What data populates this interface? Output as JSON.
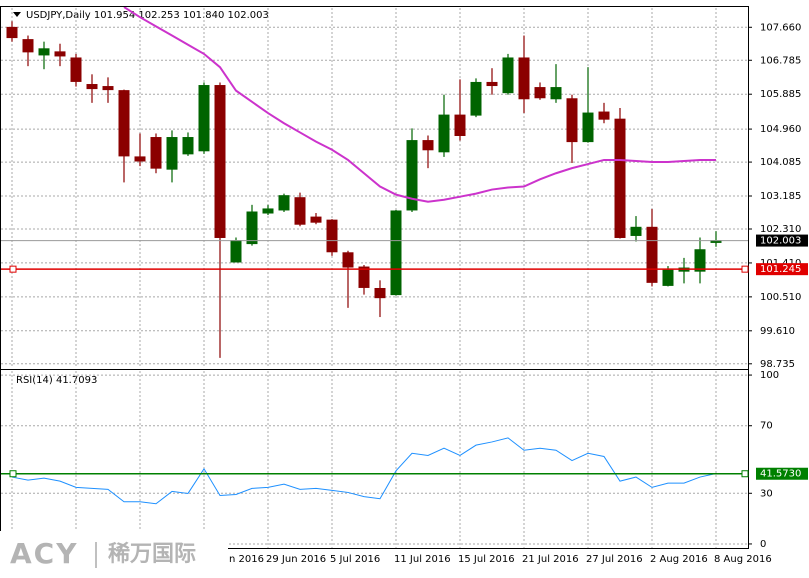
{
  "chart_data": [
    {
      "type": "candlestick",
      "title": "USDJPY,Daily 101.954 102.253 101.840 102.003",
      "categories": [
        null,
        null,
        null,
        null,
        null,
        null,
        null,
        null,
        null,
        null,
        null,
        null,
        "n 2016",
        null,
        null,
        null,
        "29 Jun 2016",
        null,
        null,
        null,
        "5 Jul 2016",
        null,
        null,
        null,
        "11 Jul 2016",
        null,
        null,
        null,
        "15 Jul 2016",
        null,
        null,
        null,
        "21 Jul 2016",
        null,
        null,
        null,
        "27 Jul 2016",
        null,
        null,
        null,
        "2 Aug 2016",
        null,
        null,
        null,
        "8 Aug 2016"
      ],
      "open": [
        107.657,
        107.333,
        106.927,
        107.008,
        106.846,
        106.142,
        106.088,
        105.98,
        104.222,
        104.736,
        103.897,
        104.303,
        104.384,
        106.115,
        101.436,
        101.923,
        102.734,
        102.815,
        103.14,
        102.626,
        102.545,
        101.679,
        101.301,
        100.732,
        100.57,
        102.815,
        104.655,
        104.357,
        105.331,
        105.331,
        106.197,
        105.926,
        106.846,
        106.061,
        105.764,
        105.764,
        104.628,
        105.412,
        105.223,
        102.139,
        102.355,
        100.814,
        101.192,
        101.192,
        101.954
      ],
      "high": [
        107.82,
        107.441,
        107.279,
        107.224,
        106.954,
        106.413,
        106.332,
        106.007,
        104.844,
        104.844,
        104.925,
        104.871,
        106.197,
        106.197,
        102.085,
        102.951,
        102.951,
        103.248,
        103.275,
        102.734,
        102.572,
        101.733,
        101.355,
        100.949,
        102.815,
        104.979,
        104.79,
        105.872,
        106.278,
        106.305,
        106.575,
        106.954,
        107.441,
        106.197,
        106.683,
        105.872,
        106.602,
        105.656,
        105.52,
        102.653,
        102.842,
        101.328,
        101.544,
        102.085,
        102.253
      ],
      "low": [
        107.279,
        106.629,
        106.548,
        106.629,
        106.088,
        105.656,
        105.656,
        103.546,
        103.978,
        103.789,
        103.546,
        104.249,
        104.303,
        98.893,
        101.436,
        101.869,
        102.68,
        102.761,
        102.383,
        102.437,
        101.598,
        100.219,
        100.57,
        99.975,
        100.543,
        102.761,
        103.924,
        104.222,
        104.655,
        105.277,
        105.872,
        105.872,
        105.385,
        105.737,
        105.656,
        104.06,
        104.6,
        105.115,
        102.058,
        101.977,
        100.787,
        100.787,
        100.868,
        100.868,
        101.84
      ],
      "close": [
        107.387,
        107.008,
        107.089,
        106.9,
        106.224,
        106.034,
        106.007,
        104.249,
        104.114,
        103.924,
        104.736,
        104.736,
        106.115,
        102.085,
        102.004,
        102.761,
        102.842,
        103.194,
        102.437,
        102.491,
        101.706,
        101.301,
        100.76,
        100.489,
        102.788,
        104.655,
        104.411,
        105.331,
        104.79,
        106.197,
        106.115,
        106.846,
        105.764,
        105.791,
        106.061,
        104.628,
        105.385,
        105.223,
        102.085,
        102.355,
        100.895,
        101.219,
        101.274,
        101.76,
        102.003
      ],
      "up_color": "#006400",
      "down_color": "#8b0000",
      "ma": {
        "color": "#cc33cc",
        "values": [
          null,
          null,
          null,
          null,
          null,
          null,
          null,
          108.198,
          107.928,
          107.684,
          107.441,
          107.197,
          106.954,
          106.602,
          105.98,
          105.683,
          105.385,
          105.115,
          104.871,
          104.628,
          104.411,
          104.141,
          103.789,
          103.437,
          103.221,
          103.113,
          103.032,
          103.086,
          103.167,
          103.248,
          103.356,
          103.41,
          103.437,
          103.627,
          103.789,
          103.924,
          104.032,
          104.141,
          104.141,
          104.114,
          104.087,
          104.087,
          104.114,
          104.141,
          104.141
        ]
      },
      "lines": [
        {
          "value": 102.003,
          "label": "102.003",
          "color": "#9a9a9a",
          "box_color": "#000000"
        },
        {
          "value": 101.245,
          "label": "101.245",
          "color": "#e00000",
          "box_color": "#e00000"
        }
      ],
      "ylim": [
        98.65,
        108.198
      ],
      "yticks": [
        {
          "value": 107.66,
          "label": "107.660"
        },
        {
          "value": 106.785,
          "label": "106.785"
        },
        {
          "value": 105.885,
          "label": "105.885"
        },
        {
          "value": 104.96,
          "label": "104.960"
        },
        {
          "value": 104.085,
          "label": "104.085"
        },
        {
          "value": 103.185,
          "label": "103.185"
        },
        {
          "value": 102.31,
          "label": "102.310"
        },
        {
          "value": 101.41,
          "label": "101.410"
        },
        {
          "value": 100.51,
          "label": "100.510"
        },
        {
          "value": 99.61,
          "label": "99.610"
        },
        {
          "value": 98.735,
          "label": "98.735"
        }
      ],
      "grid": true
    },
    {
      "type": "line",
      "title": "RSI(14) 41.7093",
      "values": [
        39.6,
        37.8,
        39.0,
        37.2,
        33.5,
        32.9,
        32.3,
        25.0,
        25.0,
        23.8,
        31.1,
        29.9,
        44.5,
        28.7,
        29.3,
        32.9,
        33.5,
        35.4,
        32.3,
        32.9,
        31.7,
        30.5,
        28.0,
        26.8,
        43.3,
        53.7,
        52.4,
        56.7,
        52.4,
        58.5,
        60.4,
        62.8,
        55.5,
        56.7,
        55.5,
        49.4,
        53.7,
        51.8,
        37.2,
        39.6,
        33.5,
        36.0,
        36.0,
        39.6,
        41.7093
      ],
      "color": "#1e90ff",
      "level": {
        "value": 41.573,
        "label": "41.5730",
        "color": "#008000"
      },
      "ylim": [
        -2.4,
        103
      ],
      "yticks": [
        100,
        70,
        30,
        0
      ],
      "grid": true
    }
  ],
  "watermark": {
    "brand": "ACY",
    "name": "稀万国际"
  }
}
